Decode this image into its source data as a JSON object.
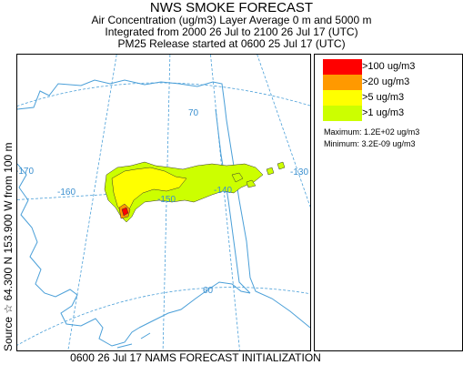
{
  "title": "NWS SMOKE FORECAST",
  "subtitle_1": "Air Concentration (ug/m3) Layer Average    0 m and  5000 m",
  "subtitle_2": "Integrated from 2000 26 Jul to 2100 26 Jul 17 (UTC)",
  "subtitle_3": "PM25 Release started at 0600 25 Jul 17 (UTC)",
  "side_label": "Source ☆ 64.300 N 153.900  W   from   100 m",
  "bottom_label": "0600 26 Jul 17 NAMS FORECAST INITIALIZATION",
  "legend": {
    "items": [
      {
        "label": ">100 ug/m3",
        "color": "#ff0000"
      },
      {
        "label": ">20 ug/m3",
        "color": "#ff9900"
      },
      {
        "label": ">5 ug/m3",
        "color": "#ffff00"
      },
      {
        "label": ">1 ug/m3",
        "color": "#ccff00"
      }
    ],
    "maximum": "Maximum:  1.2E+02 ug/m3",
    "minimum": "Minimum:  3.2E-09 ug/m3"
  },
  "map": {
    "grid_labels": [
      "70",
      "-130",
      "-170",
      "-160",
      "-150",
      "-140",
      "60"
    ],
    "colors": {
      "coast": "#4a9fd8",
      "grid": "#4a9fd8",
      "smoke_outline": "#333333"
    }
  }
}
